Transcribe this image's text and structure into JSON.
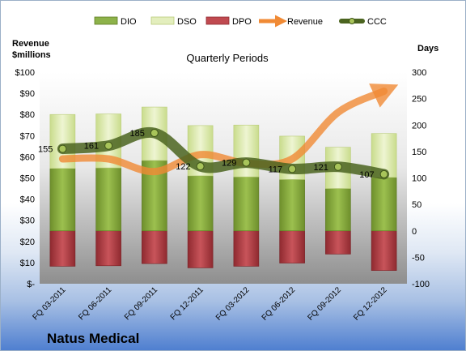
{
  "chart_data": {
    "type": "bar",
    "title": "Quarterly Periods",
    "company": "Natus Medical",
    "ylabel_left": [
      "Revenue",
      "$millions"
    ],
    "ylabel_right": "Days",
    "y_left_range": [
      0,
      100
    ],
    "y_left_ticks": [
      "$-",
      "$10",
      "$20",
      "$30",
      "$40",
      "$50",
      "$60",
      "$70",
      "$80",
      "$90",
      "$100"
    ],
    "y_right_range": [
      -100,
      300
    ],
    "y_right_ticks": [
      "-100",
      "-50",
      "0",
      "50",
      "100",
      "150",
      "200",
      "250",
      "300"
    ],
    "categories": [
      "FQ 03-2011",
      "FQ 06-2011",
      "FQ 09-2011",
      "FQ 12-2011",
      "FQ 03-2012",
      "FQ 06-2012",
      "FQ 09-2012",
      "FQ 12-2012"
    ],
    "legend": [
      "DIO",
      "DSO",
      "DPO",
      "Revenue",
      "CCC"
    ],
    "legend_position": "top",
    "series": [
      {
        "name": "DIO",
        "axis": "right",
        "values": [
          118,
          119,
          133,
          104,
          102,
          97,
          80,
          101
        ],
        "color": "#7fa03a"
      },
      {
        "name": "DSO",
        "axis": "right",
        "values": [
          102,
          102,
          101,
          95,
          98,
          82,
          78,
          83
        ],
        "color": "#dbe9ae"
      },
      {
        "name": "DPO",
        "axis": "right",
        "values": [
          -67,
          -66,
          -62,
          -70,
          -67,
          -61,
          -44,
          -75
        ],
        "color": "#b0393f"
      },
      {
        "name": "Revenue",
        "axis": "left",
        "values": [
          59,
          59,
          53,
          61,
          57,
          59,
          81,
          91
        ],
        "color": "#f08a35"
      },
      {
        "name": "CCC",
        "axis": "right",
        "values": [
          155,
          161,
          185,
          122,
          129,
          117,
          121,
          107
        ],
        "labels": [
          "155",
          "161",
          "185",
          "122",
          "129",
          "117",
          "121",
          "107"
        ],
        "color": "#4b6420"
      }
    ]
  }
}
